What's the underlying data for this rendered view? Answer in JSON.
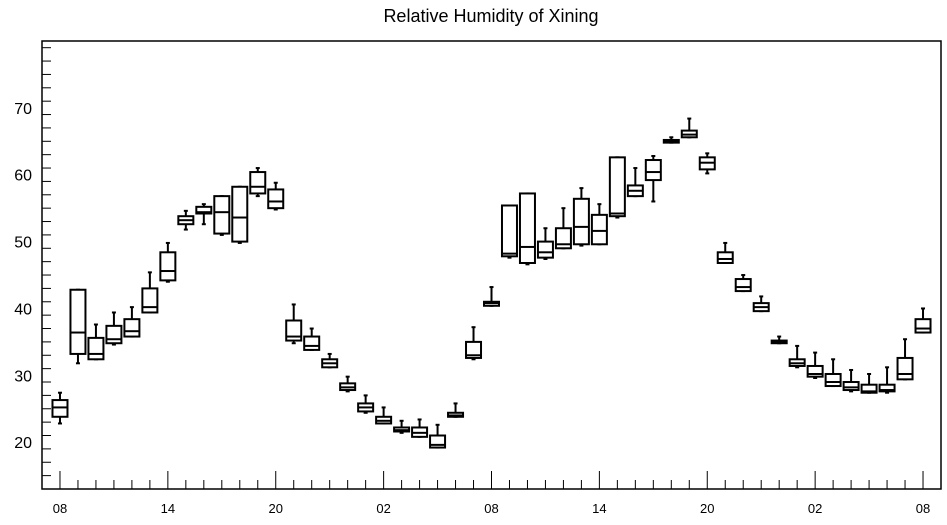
{
  "chart_data": {
    "type": "box",
    "title": "Relative Humidity of Xining",
    "xlabel": "",
    "ylabel": "",
    "ylim": [
      13,
      80
    ],
    "yticks": [
      20,
      30,
      40,
      50,
      60,
      70
    ],
    "x_tick_labels": [
      "08",
      "14",
      "20",
      "02",
      "08",
      "14",
      "20",
      "02",
      "08"
    ],
    "x_tick_hours": [
      0,
      6,
      12,
      18,
      24,
      30,
      36,
      42,
      48
    ],
    "xlim": [
      -1,
      49
    ],
    "grid": false,
    "boxes": [
      {
        "hour": 0,
        "q1": 23.8,
        "median": 25.2,
        "q3": 26.3,
        "min": 22.8,
        "max": 27.4
      },
      {
        "hour": 1,
        "q1": 33.2,
        "median": 36.4,
        "q3": 42.8,
        "min": 31.8,
        "max": 42.8
      },
      {
        "hour": 2,
        "q1": 32.4,
        "median": 33.2,
        "q3": 35.6,
        "min": 32.4,
        "max": 37.6
      },
      {
        "hour": 3,
        "q1": 34.8,
        "median": 35.4,
        "q3": 37.4,
        "min": 34.6,
        "max": 39.4
      },
      {
        "hour": 4,
        "q1": 35.8,
        "median": 36.6,
        "q3": 38.4,
        "min": 35.8,
        "max": 40.2
      },
      {
        "hour": 5,
        "q1": 39.4,
        "median": 40.2,
        "q3": 43.0,
        "min": 39.4,
        "max": 45.4
      },
      {
        "hour": 6,
        "q1": 44.2,
        "median": 45.6,
        "q3": 48.4,
        "min": 44.0,
        "max": 49.8
      },
      {
        "hour": 7,
        "q1": 52.6,
        "median": 53.2,
        "q3": 53.8,
        "min": 51.8,
        "max": 54.6
      },
      {
        "hour": 8,
        "q1": 54.2,
        "median": 54.4,
        "q3": 55.2,
        "min": 52.6,
        "max": 55.6
      },
      {
        "hour": 9,
        "q1": 51.2,
        "median": 54.4,
        "q3": 56.8,
        "min": 51.0,
        "max": 56.8
      },
      {
        "hour": 10,
        "q1": 50.0,
        "median": 53.6,
        "q3": 58.2,
        "min": 49.8,
        "max": 58.2
      },
      {
        "hour": 11,
        "q1": 57.2,
        "median": 58.2,
        "q3": 60.4,
        "min": 56.8,
        "max": 61.0
      },
      {
        "hour": 12,
        "q1": 55.0,
        "median": 56.0,
        "q3": 57.8,
        "min": 54.8,
        "max": 58.8
      },
      {
        "hour": 13,
        "q1": 35.2,
        "median": 35.8,
        "q3": 38.2,
        "min": 34.8,
        "max": 40.6
      },
      {
        "hour": 14,
        "q1": 33.8,
        "median": 34.4,
        "q3": 35.8,
        "min": 33.8,
        "max": 37.0
      },
      {
        "hour": 15,
        "q1": 31.2,
        "median": 31.8,
        "q3": 32.4,
        "min": 31.2,
        "max": 33.2
      },
      {
        "hour": 16,
        "q1": 27.8,
        "median": 28.2,
        "q3": 28.8,
        "min": 27.6,
        "max": 29.8
      },
      {
        "hour": 17,
        "q1": 24.6,
        "median": 25.2,
        "q3": 25.8,
        "min": 24.4,
        "max": 27.0
      },
      {
        "hour": 18,
        "q1": 22.8,
        "median": 23.2,
        "q3": 23.8,
        "min": 22.8,
        "max": 25.2
      },
      {
        "hour": 19,
        "q1": 21.6,
        "median": 21.8,
        "q3": 22.2,
        "min": 21.4,
        "max": 23.2
      },
      {
        "hour": 20,
        "q1": 20.8,
        "median": 21.4,
        "q3": 22.2,
        "min": 20.8,
        "max": 23.4
      },
      {
        "hour": 21,
        "q1": 19.2,
        "median": 19.6,
        "q3": 21.0,
        "min": 19.2,
        "max": 22.6
      },
      {
        "hour": 22,
        "q1": 23.8,
        "median": 24.0,
        "q3": 24.4,
        "min": 23.8,
        "max": 25.8
      },
      {
        "hour": 23,
        "q1": 32.6,
        "median": 33.0,
        "q3": 35.0,
        "min": 32.4,
        "max": 37.2
      },
      {
        "hour": 24,
        "q1": 40.4,
        "median": 40.8,
        "q3": 41.0,
        "min": 40.4,
        "max": 43.2
      },
      {
        "hour": 25,
        "q1": 47.8,
        "median": 48.2,
        "q3": 55.4,
        "min": 47.6,
        "max": 55.4
      },
      {
        "hour": 26,
        "q1": 46.8,
        "median": 49.2,
        "q3": 57.2,
        "min": 46.6,
        "max": 57.2
      },
      {
        "hour": 27,
        "q1": 47.6,
        "median": 48.4,
        "q3": 50.0,
        "min": 47.4,
        "max": 52.0
      },
      {
        "hour": 28,
        "q1": 49.0,
        "median": 49.6,
        "q3": 52.0,
        "min": 49.0,
        "max": 55.0
      },
      {
        "hour": 29,
        "q1": 49.6,
        "median": 52.2,
        "q3": 56.4,
        "min": 49.4,
        "max": 58.0
      },
      {
        "hour": 30,
        "q1": 49.6,
        "median": 51.6,
        "q3": 54.0,
        "min": 49.6,
        "max": 55.6
      },
      {
        "hour": 31,
        "q1": 53.8,
        "median": 54.2,
        "q3": 62.6,
        "min": 53.6,
        "max": 62.6
      },
      {
        "hour": 32,
        "q1": 56.8,
        "median": 57.6,
        "q3": 58.4,
        "min": 56.8,
        "max": 61.0
      },
      {
        "hour": 33,
        "q1": 59.2,
        "median": 60.4,
        "q3": 62.2,
        "min": 56.0,
        "max": 62.8
      },
      {
        "hour": 34,
        "q1": 64.8,
        "median": 65.0,
        "q3": 65.2,
        "min": 64.8,
        "max": 65.6
      },
      {
        "hour": 35,
        "q1": 65.6,
        "median": 66.0,
        "q3": 66.6,
        "min": 65.6,
        "max": 68.4
      },
      {
        "hour": 36,
        "q1": 60.8,
        "median": 61.8,
        "q3": 62.6,
        "min": 60.2,
        "max": 63.2
      },
      {
        "hour": 37,
        "q1": 46.8,
        "median": 47.4,
        "q3": 48.4,
        "min": 46.8,
        "max": 49.8
      },
      {
        "hour": 38,
        "q1": 42.6,
        "median": 43.2,
        "q3": 44.4,
        "min": 42.6,
        "max": 45.0
      },
      {
        "hour": 39,
        "q1": 39.6,
        "median": 40.2,
        "q3": 40.8,
        "min": 39.6,
        "max": 41.8
      },
      {
        "hour": 40,
        "q1": 34.8,
        "median": 35.0,
        "q3": 35.2,
        "min": 34.8,
        "max": 35.8
      },
      {
        "hour": 41,
        "q1": 31.4,
        "median": 31.8,
        "q3": 32.4,
        "min": 31.2,
        "max": 34.4
      },
      {
        "hour": 42,
        "q1": 29.8,
        "median": 30.2,
        "q3": 31.4,
        "min": 29.6,
        "max": 33.4
      },
      {
        "hour": 43,
        "q1": 28.4,
        "median": 29.0,
        "q3": 30.2,
        "min": 28.4,
        "max": 32.4
      },
      {
        "hour": 44,
        "q1": 27.8,
        "median": 28.2,
        "q3": 29.0,
        "min": 27.6,
        "max": 30.8
      },
      {
        "hour": 45,
        "q1": 27.4,
        "median": 27.6,
        "q3": 28.6,
        "min": 27.4,
        "max": 30.2
      },
      {
        "hour": 46,
        "q1": 27.6,
        "median": 27.8,
        "q3": 28.6,
        "min": 27.4,
        "max": 31.2
      },
      {
        "hour": 47,
        "q1": 29.4,
        "median": 30.2,
        "q3": 32.6,
        "min": 29.4,
        "max": 35.4
      },
      {
        "hour": 48,
        "q1": 36.4,
        "median": 37.0,
        "q3": 38.4,
        "min": 36.4,
        "max": 40.0
      }
    ]
  }
}
